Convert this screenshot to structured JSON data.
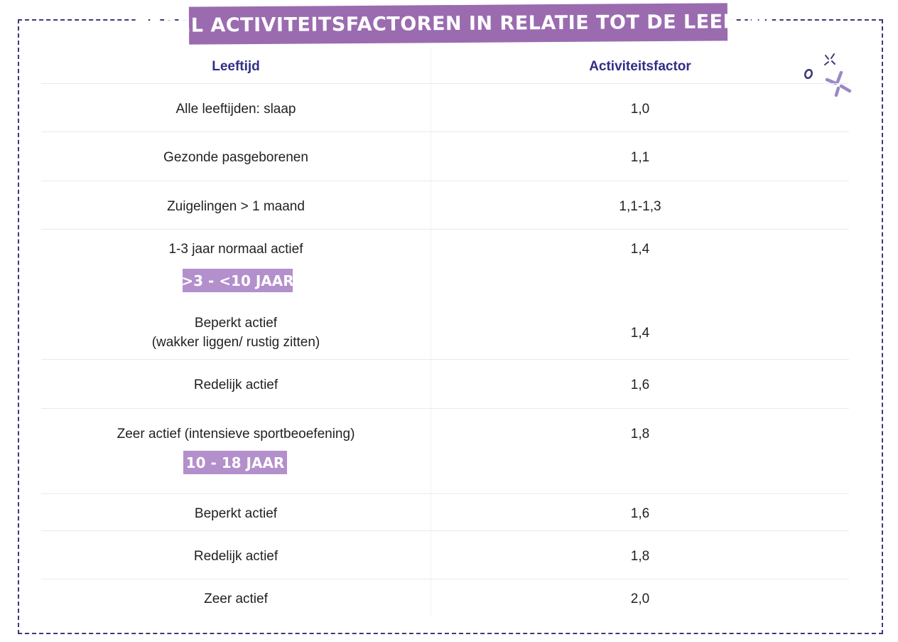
{
  "title": "TABEL ACTIVITEITSFACTOREN IN RELATIE TOT DE LEEFTIJD",
  "table": {
    "headers": {
      "age": "Leeftijd",
      "factor": "Activiteitsfactor"
    },
    "groups": [
      {
        "heading": "",
        "rows": [
          {
            "age": "Alle leeftijden: slaap",
            "factor": "1,0"
          },
          {
            "age": "Gezonde pasgeborenen",
            "factor": "1,1"
          },
          {
            "age": "Zuigelingen > 1 maand",
            "factor": "1,1-1,3"
          },
          {
            "age": "1-3 jaar normaal actief",
            "factor": "1,4"
          }
        ]
      },
      {
        "heading": ">3 - <10 JAAR",
        "rows": [
          {
            "age": "Beperkt actief",
            "age_line2": "(wakker liggen/ rustig zitten)",
            "factor": "1,4"
          },
          {
            "age": "Redelijk actief",
            "factor": "1,6"
          },
          {
            "age": "Zeer actief (intensieve sportbeoefening)",
            "factor": "1,8"
          }
        ]
      },
      {
        "heading": "10 - 18 JAAR",
        "rows": [
          {
            "age": "Beperkt actief",
            "factor": "1,6"
          },
          {
            "age": "Redelijk actief",
            "factor": "1,8"
          },
          {
            "age": "Zeer actief",
            "factor": "2,0"
          }
        ]
      }
    ]
  },
  "colors": {
    "frame": "#3b3a78",
    "title_banner": "#9b6bb0",
    "sub_banner": "#b38fcc",
    "header_text": "#2f2f86",
    "row_divider": "#e3ecef"
  },
  "decoration": {
    "icon": "sparkle-doodle-icon"
  }
}
